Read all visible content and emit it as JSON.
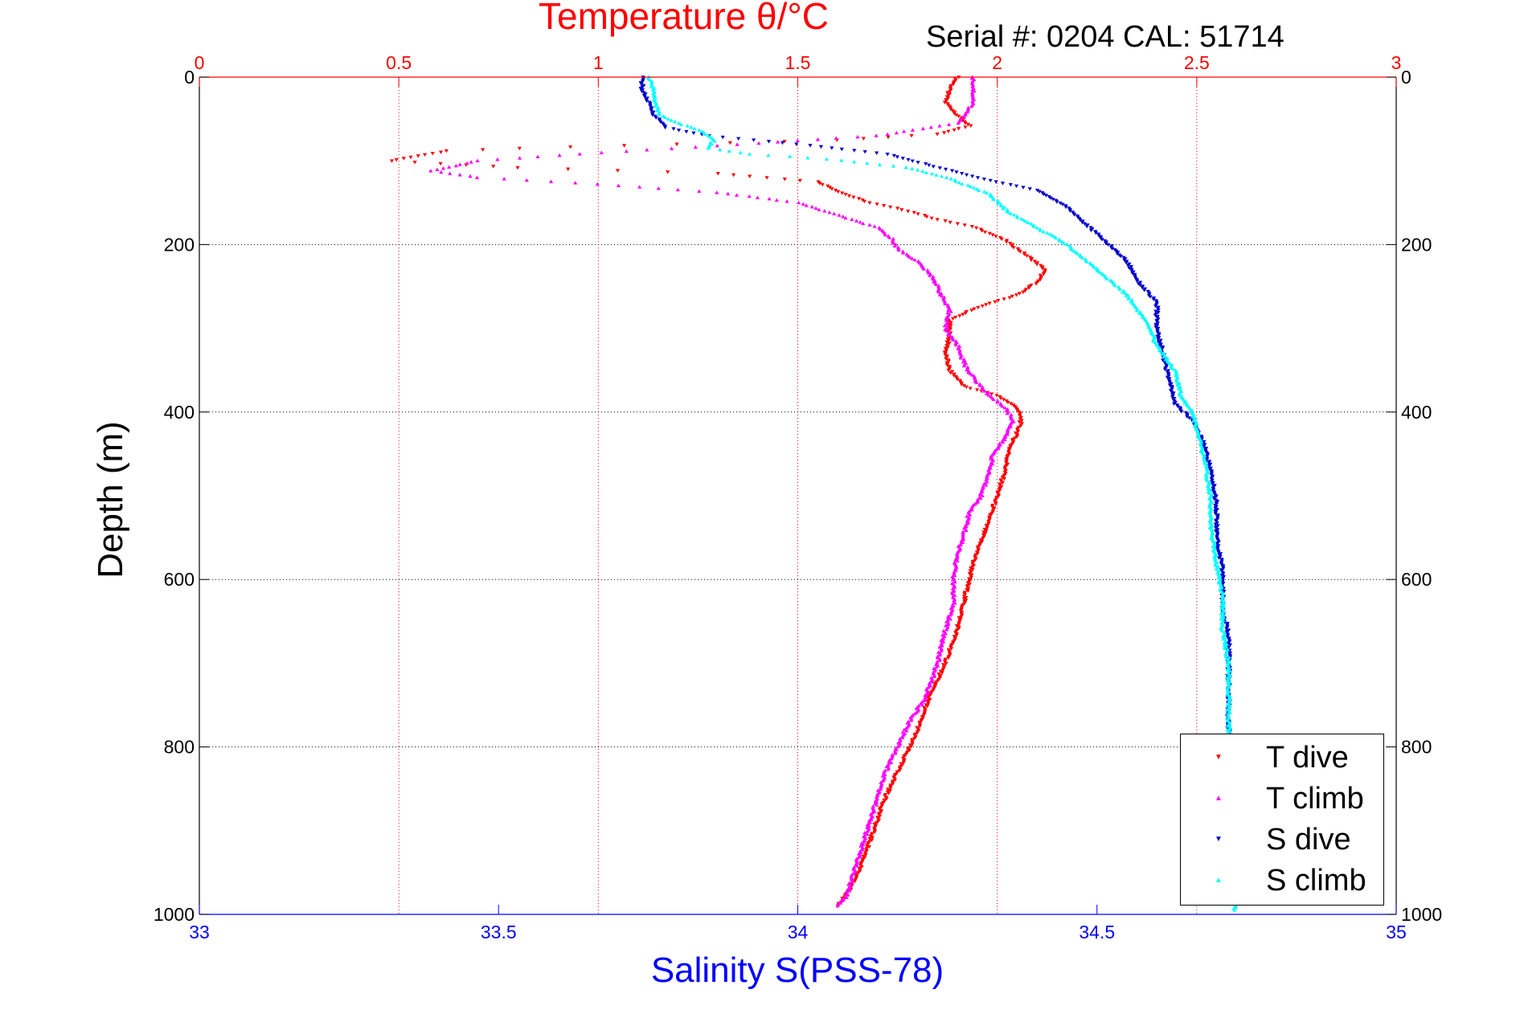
{
  "chart_data": {
    "type": "scatter",
    "title": "Temperature θ/°C",
    "subtitle": "Serial #: 0204  CAL: 51714",
    "ylabel": "Depth (m)",
    "xlabel": "Salinity S(PSS-78)",
    "top_axis": {
      "label": "Temperature θ/°C",
      "range": [
        0,
        3
      ],
      "ticks": [
        "0",
        "0.5",
        "1",
        "1.5",
        "2",
        "2.5",
        "3"
      ],
      "color": "#ff0000"
    },
    "bottom_axis": {
      "label": "Salinity S(PSS-78)",
      "range": [
        33,
        35
      ],
      "ticks": [
        "33",
        "33.5",
        "34",
        "34.5",
        "35"
      ],
      "color": "#0000ff"
    },
    "y_axis": {
      "range": [
        0,
        1000
      ],
      "reversed": true,
      "ticks": [
        "0",
        "200",
        "400",
        "600",
        "800",
        "1000"
      ]
    },
    "grid": true,
    "legend_position": "bottom-right",
    "series": [
      {
        "name": "T dive",
        "axis": "temperature",
        "color": "#ff0000",
        "marker": "down-triangle",
        "points": [
          [
            1.9,
            0
          ],
          [
            1.88,
            15
          ],
          [
            1.87,
            30
          ],
          [
            1.9,
            45
          ],
          [
            1.93,
            58
          ],
          [
            1.85,
            68
          ],
          [
            1.6,
            75
          ],
          [
            1.2,
            80
          ],
          [
            0.8,
            85
          ],
          [
            0.62,
            88
          ],
          [
            0.48,
            100
          ],
          [
            0.8,
            108
          ],
          [
            1.3,
            115
          ],
          [
            1.55,
            125
          ],
          [
            1.62,
            140
          ],
          [
            1.68,
            150
          ],
          [
            1.78,
            160
          ],
          [
            1.85,
            170
          ],
          [
            1.95,
            180
          ],
          [
            2.02,
            195
          ],
          [
            2.05,
            205
          ],
          [
            2.08,
            215
          ],
          [
            2.12,
            230
          ],
          [
            2.1,
            245
          ],
          [
            2.05,
            260
          ],
          [
            1.95,
            275
          ],
          [
            1.88,
            290
          ],
          [
            1.88,
            310
          ],
          [
            1.87,
            330
          ],
          [
            1.88,
            350
          ],
          [
            1.92,
            370
          ],
          [
            2.0,
            380
          ],
          [
            2.05,
            395
          ],
          [
            2.06,
            410
          ],
          [
            2.05,
            425
          ],
          [
            2.03,
            445
          ],
          [
            2.02,
            470
          ],
          [
            2.0,
            500
          ],
          [
            1.97,
            540
          ],
          [
            1.94,
            580
          ],
          [
            1.92,
            620
          ],
          [
            1.9,
            660
          ],
          [
            1.87,
            700
          ],
          [
            1.83,
            740
          ],
          [
            1.8,
            780
          ],
          [
            1.76,
            820
          ],
          [
            1.72,
            860
          ],
          [
            1.69,
            900
          ],
          [
            1.66,
            940
          ],
          [
            1.63,
            970
          ],
          [
            1.6,
            990
          ]
        ]
      },
      {
        "name": "T climb",
        "axis": "temperature",
        "color": "#ff00ff",
        "marker": "up-triangle",
        "points": [
          [
            1.94,
            0
          ],
          [
            1.94,
            15
          ],
          [
            1.94,
            30
          ],
          [
            1.92,
            45
          ],
          [
            1.9,
            55
          ],
          [
            1.7,
            70
          ],
          [
            1.3,
            82
          ],
          [
            0.95,
            92
          ],
          [
            0.7,
            100
          ],
          [
            0.58,
            112
          ],
          [
            0.7,
            120
          ],
          [
            1.0,
            128
          ],
          [
            1.3,
            138
          ],
          [
            1.5,
            150
          ],
          [
            1.6,
            165
          ],
          [
            1.7,
            180
          ],
          [
            1.74,
            195
          ],
          [
            1.75,
            205
          ],
          [
            1.8,
            220
          ],
          [
            1.84,
            240
          ],
          [
            1.86,
            260
          ],
          [
            1.88,
            280
          ],
          [
            1.87,
            300
          ],
          [
            1.9,
            320
          ],
          [
            1.92,
            345
          ],
          [
            1.95,
            365
          ],
          [
            1.98,
            380
          ],
          [
            2.02,
            395
          ],
          [
            2.04,
            410
          ],
          [
            2.02,
            430
          ],
          [
            1.99,
            450
          ],
          [
            1.98,
            470
          ],
          [
            1.96,
            500
          ],
          [
            1.93,
            520
          ],
          [
            1.92,
            540
          ],
          [
            1.9,
            570
          ],
          [
            1.89,
            600
          ],
          [
            1.89,
            630
          ],
          [
            1.87,
            660
          ],
          [
            1.85,
            700
          ],
          [
            1.82,
            740
          ],
          [
            1.78,
            770
          ],
          [
            1.75,
            800
          ],
          [
            1.72,
            830
          ],
          [
            1.7,
            860
          ],
          [
            1.68,
            890
          ],
          [
            1.66,
            920
          ],
          [
            1.64,
            950
          ],
          [
            1.62,
            980
          ],
          [
            1.6,
            990
          ]
        ]
      },
      {
        "name": "S dive",
        "axis": "salinity",
        "color": "#0000cc",
        "marker": "down-triangle",
        "points": [
          [
            33.74,
            0
          ],
          [
            33.74,
            15
          ],
          [
            33.75,
            30
          ],
          [
            33.76,
            45
          ],
          [
            33.78,
            60
          ],
          [
            33.85,
            70
          ],
          [
            34.0,
            80
          ],
          [
            34.15,
            92
          ],
          [
            34.22,
            105
          ],
          [
            34.3,
            120
          ],
          [
            34.4,
            135
          ],
          [
            34.45,
            155
          ],
          [
            34.48,
            175
          ],
          [
            34.52,
            200
          ],
          [
            34.55,
            220
          ],
          [
            34.57,
            245
          ],
          [
            34.6,
            270
          ],
          [
            34.6,
            300
          ],
          [
            34.61,
            330
          ],
          [
            34.62,
            360
          ],
          [
            34.63,
            390
          ],
          [
            34.66,
            410
          ],
          [
            34.68,
            440
          ],
          [
            34.69,
            470
          ],
          [
            34.7,
            510
          ],
          [
            34.7,
            550
          ],
          [
            34.71,
            590
          ],
          [
            34.71,
            630
          ],
          [
            34.72,
            670
          ],
          [
            34.72,
            710
          ],
          [
            34.72,
            750
          ],
          [
            34.72,
            790
          ]
        ]
      },
      {
        "name": "S climb",
        "axis": "salinity",
        "color": "#00ffff",
        "marker": "up-triangle",
        "points": [
          [
            33.75,
            0
          ],
          [
            33.76,
            15
          ],
          [
            33.76,
            30
          ],
          [
            33.77,
            45
          ],
          [
            33.8,
            55
          ],
          [
            33.84,
            65
          ],
          [
            33.86,
            75
          ],
          [
            33.85,
            85
          ],
          [
            33.92,
            92
          ],
          [
            34.05,
            98
          ],
          [
            34.18,
            108
          ],
          [
            34.25,
            120
          ],
          [
            34.32,
            140
          ],
          [
            34.35,
            160
          ],
          [
            34.4,
            180
          ],
          [
            34.45,
            200
          ],
          [
            34.5,
            230
          ],
          [
            34.55,
            260
          ],
          [
            34.58,
            290
          ],
          [
            34.6,
            320
          ],
          [
            34.63,
            350
          ],
          [
            34.64,
            380
          ],
          [
            34.66,
            400
          ],
          [
            34.67,
            430
          ],
          [
            34.68,
            460
          ],
          [
            34.69,
            500
          ],
          [
            34.69,
            540
          ],
          [
            34.7,
            580
          ],
          [
            34.71,
            620
          ],
          [
            34.71,
            660
          ],
          [
            34.72,
            700
          ],
          [
            34.72,
            740
          ],
          [
            34.72,
            780
          ],
          [
            34.73,
            820
          ],
          [
            34.73,
            860
          ],
          [
            34.73,
            900
          ],
          [
            34.73,
            950
          ],
          [
            34.73,
            995
          ]
        ]
      }
    ]
  }
}
